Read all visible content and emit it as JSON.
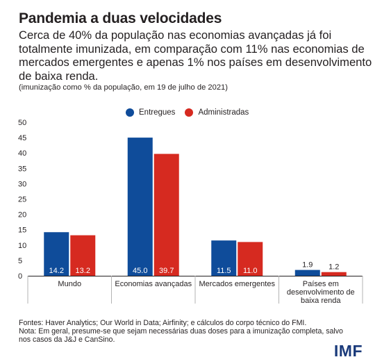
{
  "title": "Pandemia a duas velocidades",
  "subtitle": "Cerca de 40% da população nas economias avançadas já foi totalmente imunizada, em comparação com 11% nas economias de mercados emergentes e apenas 1% nos países em desenvolvimento de baixa renda.",
  "note": "(imunização como % da população, em 19 de julho de 2021)",
  "footer": {
    "sources": "Fontes: Haver Analytics; Our World in Data; Airfinity; e cálculos do corpo técnico do FMI.",
    "note": "Nota: Em geral, presume-se que sejam necessárias duas doses para a imunização completa, salvo nos casos da J&J e CanSino."
  },
  "logo": "IMF",
  "chart_data": {
    "type": "bar",
    "categories": [
      "Mundo",
      "Economias avançadas",
      "Mercados emergentes",
      "Países em desenvolvimento de baixa renda"
    ],
    "category_lines": [
      [
        "Mundo"
      ],
      [
        "Economias avançadas"
      ],
      [
        "Mercados emergentes"
      ],
      [
        "Países em",
        "desenvolvimento de",
        "baixa renda"
      ]
    ],
    "series": [
      {
        "name": "Entregues",
        "color": "#0f4c9a",
        "values": [
          14.2,
          45.0,
          11.5,
          1.9
        ],
        "labels": [
          "14.2",
          "45.0",
          "11.5",
          "1.9"
        ]
      },
      {
        "name": "Administradas",
        "color": "#d62a20",
        "values": [
          13.2,
          39.7,
          11.0,
          1.2
        ],
        "labels": [
          "13.2",
          "39.7",
          "11.0",
          "1.2"
        ]
      }
    ],
    "ylim": [
      0,
      50
    ],
    "yticks": [
      "0",
      "5",
      "10",
      "15",
      "20",
      "25",
      "30",
      "35",
      "40",
      "45",
      "50"
    ],
    "legend_position": "top-center",
    "grid": false
  }
}
